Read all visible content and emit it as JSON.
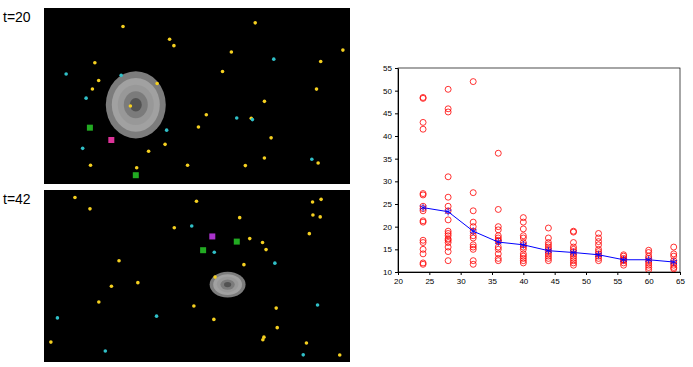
{
  "panels": [
    {
      "label": "t=20"
    },
    {
      "label": "t=42"
    }
  ],
  "chart_data": {
    "type": "scatter",
    "xlim": [
      20,
      65
    ],
    "xticks": [
      20,
      25,
      30,
      35,
      40,
      45,
      50,
      55,
      60,
      65
    ],
    "ylim": [
      10,
      55
    ],
    "yticks": [
      10,
      15,
      20,
      25,
      30,
      35,
      40,
      45,
      50,
      55
    ],
    "grid": false,
    "series": [
      {
        "type": "scatter",
        "color": "#ff0000",
        "marker": "circle",
        "x": [
          24,
          24,
          24,
          24,
          24,
          24,
          24,
          24,
          24,
          24,
          24,
          24,
          24,
          24,
          24,
          24,
          24,
          28,
          28,
          28,
          28,
          28,
          28,
          28,
          28,
          28,
          28,
          28,
          28,
          28,
          28,
          28,
          28,
          28,
          32,
          32,
          32,
          32,
          32,
          32,
          32,
          32,
          32,
          32,
          32,
          32,
          32,
          36,
          36,
          36,
          36,
          36,
          36,
          36,
          36,
          36,
          36,
          36,
          36,
          36,
          40,
          40,
          40,
          40,
          40,
          40,
          40,
          40,
          40,
          40,
          40,
          40,
          40,
          40,
          44,
          44,
          44,
          44,
          44,
          44,
          44,
          44,
          44,
          44,
          44,
          48,
          48,
          48,
          48,
          48,
          48,
          48,
          48,
          48,
          48,
          48,
          48,
          52,
          52,
          52,
          52,
          52,
          52,
          52,
          52,
          52,
          52,
          56,
          56,
          56,
          56,
          56,
          56,
          56,
          60,
          60,
          60,
          60,
          60,
          60,
          60,
          60,
          60,
          64,
          64,
          64,
          64,
          64,
          64,
          64,
          64
        ],
        "values": [
          48.5,
          48.3,
          43,
          41.5,
          27.3,
          27,
          24.5,
          24,
          23.5,
          21.3,
          21,
          17,
          16.5,
          15,
          14,
          12,
          11.7,
          50.3,
          46,
          45.3,
          31,
          26.5,
          24.5,
          23.5,
          21.5,
          19,
          18.5,
          18,
          17.3,
          17,
          16.5,
          15.5,
          14.5,
          12.5,
          52,
          27.5,
          23.5,
          21,
          20,
          19,
          18,
          17.5,
          16,
          15.5,
          15,
          12.5,
          11.7,
          36.2,
          23.8,
          20,
          19.3,
          18,
          17.5,
          17,
          16.8,
          15.5,
          15,
          14,
          13,
          12.5,
          22,
          21,
          19.5,
          18,
          17.5,
          16.5,
          16,
          15.5,
          15,
          14,
          13.5,
          13,
          12.5,
          12,
          19.7,
          17.5,
          16.5,
          16,
          15.5,
          15,
          14.5,
          14,
          13.5,
          13,
          12.5,
          19,
          18.8,
          16.5,
          15.5,
          15,
          14.5,
          14,
          13.5,
          13,
          12.5,
          12,
          11.5,
          18.5,
          17.5,
          16.7,
          16,
          15,
          14.5,
          14,
          13.5,
          13,
          12.5,
          13.8,
          13.5,
          13,
          12.7,
          12.5,
          12,
          11.5,
          14.8,
          14.3,
          13.5,
          13,
          12.5,
          12,
          11.5,
          11,
          10.5,
          15.5,
          14,
          13.5,
          12.5,
          12,
          11.5,
          11,
          10.7
        ]
      },
      {
        "type": "line",
        "color": "#0000ff",
        "marker": "asterisk",
        "line_style": "solid",
        "x": [
          24,
          28,
          32,
          36,
          40,
          44,
          48,
          52,
          56,
          60,
          64
        ],
        "values": [
          24.2,
          23.3,
          19,
          16.6,
          16,
          14.7,
          14.3,
          13.8,
          12.7,
          12.7,
          12.2
        ]
      }
    ]
  }
}
